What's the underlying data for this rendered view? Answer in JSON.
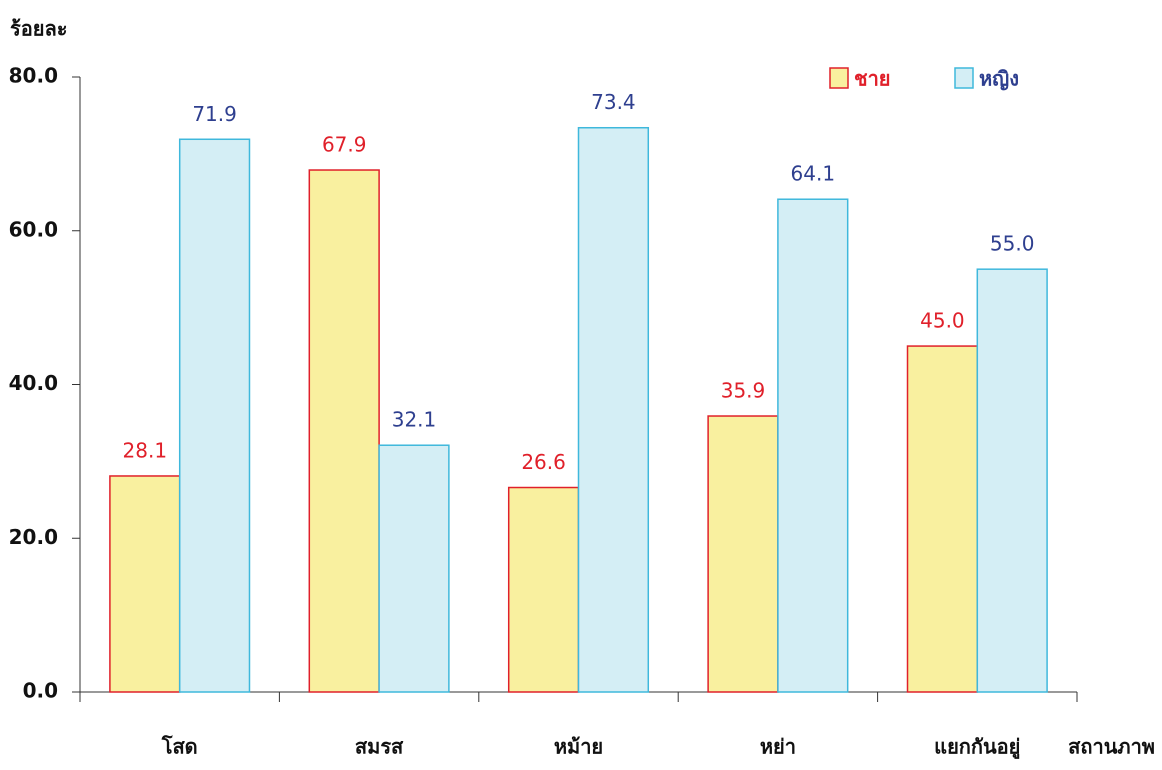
{
  "chart_data": {
    "type": "bar",
    "y_label": "ร้อยละ",
    "x_label": "สถานภาพ",
    "categories": [
      "โสด",
      "สมรส",
      "หม้าย",
      "หย่า",
      "แยกกันอยู่"
    ],
    "series": [
      {
        "name": "ชาย",
        "color": "#f9f09f",
        "edge": "#e0202a",
        "label_color": "#e0202a",
        "values": [
          28.1,
          67.9,
          26.6,
          35.9,
          45.0
        ],
        "value_labels": [
          "28.1",
          "67.9",
          "26.6",
          "35.9",
          "45.0"
        ]
      },
      {
        "name": "หญิง",
        "color": "#d4eef5",
        "edge": "#3fb8dc",
        "label_color": "#2e3f8f",
        "values": [
          71.9,
          32.1,
          73.4,
          64.1,
          55.0
        ],
        "value_labels": [
          "71.9",
          "32.1",
          "73.4",
          "64.1",
          "55.0"
        ]
      }
    ],
    "ylim": [
      0,
      80
    ],
    "yticks": [
      {
        "value": 0,
        "label": "0.0"
      },
      {
        "value": 20,
        "label": "20.0"
      },
      {
        "value": 40,
        "label": "40.0"
      },
      {
        "value": 60,
        "label": "60.0"
      },
      {
        "value": 80,
        "label": "80.0"
      }
    ],
    "grid": false
  }
}
